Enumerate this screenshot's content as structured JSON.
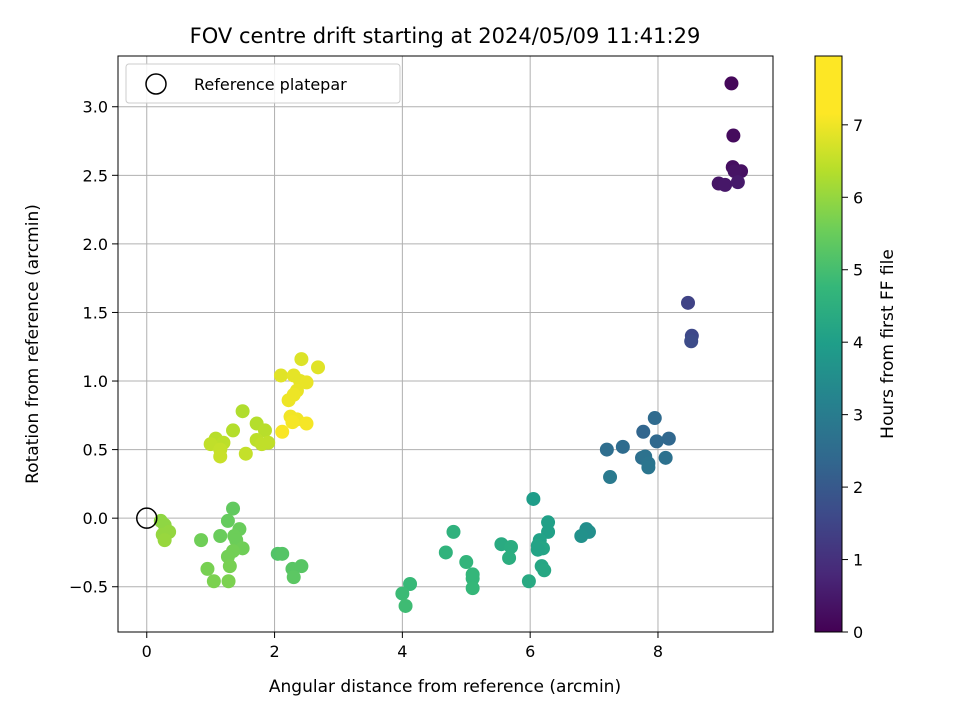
{
  "chart_data": {
    "type": "scatter",
    "title": "FOV centre drift starting at 2024/05/09 11:41:29",
    "xlabel": "Angular distance from reference (arcmin)",
    "ylabel": "Rotation from reference (arcmin)",
    "xlim": [
      -0.45,
      9.8
    ],
    "ylim": [
      -0.83,
      3.37
    ],
    "xticks": [
      0,
      2,
      4,
      6,
      8
    ],
    "yticks": [
      -0.5,
      0.0,
      0.5,
      1.0,
      1.5,
      2.0,
      2.5,
      3.0
    ],
    "xtick_labels": [
      "0",
      "2",
      "4",
      "6",
      "8"
    ],
    "ytick_labels": [
      "−0.5",
      "0.0",
      "0.5",
      "1.0",
      "1.5",
      "2.0",
      "2.5",
      "3.0"
    ],
    "grid": true,
    "legend": {
      "position": "top-left",
      "entries": [
        "Reference platepar"
      ]
    },
    "reference_point": {
      "x": 0.0,
      "y": 0.0,
      "marker": "open-circle",
      "color": "#000000"
    },
    "colorbar": {
      "label": "Hours from first FF file",
      "colormap": "viridis",
      "range": [
        0,
        7.95
      ],
      "ticks": [
        0,
        1,
        2,
        3,
        4,
        5,
        6,
        7
      ],
      "tick_labels": [
        "0",
        "1",
        "2",
        "3",
        "4",
        "5",
        "6",
        "7"
      ]
    },
    "points": [
      {
        "x": 9.15,
        "y": 3.17,
        "c": 0.15
      },
      {
        "x": 9.18,
        "y": 2.79,
        "c": 0.22
      },
      {
        "x": 9.17,
        "y": 2.56,
        "c": 0.3
      },
      {
        "x": 9.3,
        "y": 2.53,
        "c": 0.35
      },
      {
        "x": 9.2,
        "y": 2.53,
        "c": 0.4
      },
      {
        "x": 8.95,
        "y": 2.44,
        "c": 0.45
      },
      {
        "x": 9.05,
        "y": 2.43,
        "c": 0.5
      },
      {
        "x": 9.25,
        "y": 2.45,
        "c": 0.55
      },
      {
        "x": 8.47,
        "y": 1.57,
        "c": 1.6
      },
      {
        "x": 8.53,
        "y": 1.33,
        "c": 1.75
      },
      {
        "x": 8.52,
        "y": 1.29,
        "c": 1.85
      },
      {
        "x": 7.95,
        "y": 0.73,
        "c": 2.75
      },
      {
        "x": 7.77,
        "y": 0.63,
        "c": 2.6
      },
      {
        "x": 8.17,
        "y": 0.58,
        "c": 2.65
      },
      {
        "x": 7.98,
        "y": 0.56,
        "c": 2.7
      },
      {
        "x": 7.45,
        "y": 0.52,
        "c": 2.8
      },
      {
        "x": 7.2,
        "y": 0.5,
        "c": 2.85
      },
      {
        "x": 7.75,
        "y": 0.44,
        "c": 2.9
      },
      {
        "x": 8.12,
        "y": 0.44,
        "c": 2.95
      },
      {
        "x": 7.8,
        "y": 0.45,
        "c": 3.0
      },
      {
        "x": 7.85,
        "y": 0.4,
        "c": 3.05
      },
      {
        "x": 7.85,
        "y": 0.37,
        "c": 3.1
      },
      {
        "x": 7.25,
        "y": 0.3,
        "c": 3.25
      },
      {
        "x": 6.05,
        "y": 0.14,
        "c": 4.4
      },
      {
        "x": 6.28,
        "y": -0.03,
        "c": 4.5
      },
      {
        "x": 6.88,
        "y": -0.08,
        "c": 3.9
      },
      {
        "x": 6.92,
        "y": -0.1,
        "c": 3.95
      },
      {
        "x": 6.28,
        "y": -0.1,
        "c": 4.5
      },
      {
        "x": 6.8,
        "y": -0.13,
        "c": 4.0
      },
      {
        "x": 6.15,
        "y": -0.16,
        "c": 4.55
      },
      {
        "x": 6.12,
        "y": -0.2,
        "c": 4.6
      },
      {
        "x": 6.2,
        "y": -0.22,
        "c": 4.65
      },
      {
        "x": 6.12,
        "y": -0.23,
        "c": 4.6
      },
      {
        "x": 5.55,
        "y": -0.19,
        "c": 4.85
      },
      {
        "x": 5.7,
        "y": -0.21,
        "c": 4.9
      },
      {
        "x": 5.67,
        "y": -0.29,
        "c": 4.95
      },
      {
        "x": 6.18,
        "y": -0.35,
        "c": 4.7
      },
      {
        "x": 6.22,
        "y": -0.38,
        "c": 4.75
      },
      {
        "x": 5.98,
        "y": -0.46,
        "c": 4.8
      },
      {
        "x": 4.8,
        "y": -0.1,
        "c": 5.1
      },
      {
        "x": 4.68,
        "y": -0.25,
        "c": 5.15
      },
      {
        "x": 5.0,
        "y": -0.32,
        "c": 5.2
      },
      {
        "x": 5.1,
        "y": -0.41,
        "c": 5.25
      },
      {
        "x": 5.1,
        "y": -0.44,
        "c": 5.25
      },
      {
        "x": 5.1,
        "y": -0.51,
        "c": 5.3
      },
      {
        "x": 4.12,
        "y": -0.48,
        "c": 5.35
      },
      {
        "x": 4.0,
        "y": -0.55,
        "c": 5.4
      },
      {
        "x": 4.05,
        "y": -0.64,
        "c": 5.45
      },
      {
        "x": 1.35,
        "y": 0.07,
        "c": 6.0
      },
      {
        "x": 1.27,
        "y": -0.02,
        "c": 6.05
      },
      {
        "x": 1.45,
        "y": -0.08,
        "c": 6.1
      },
      {
        "x": 1.15,
        "y": -0.13,
        "c": 6.1
      },
      {
        "x": 1.37,
        "y": -0.13,
        "c": 6.15
      },
      {
        "x": 1.4,
        "y": -0.16,
        "c": 6.15
      },
      {
        "x": 0.85,
        "y": -0.16,
        "c": 6.2
      },
      {
        "x": 1.5,
        "y": -0.22,
        "c": 6.2
      },
      {
        "x": 1.35,
        "y": -0.24,
        "c": 6.25
      },
      {
        "x": 2.05,
        "y": -0.26,
        "c": 5.75
      },
      {
        "x": 2.12,
        "y": -0.26,
        "c": 5.8
      },
      {
        "x": 1.27,
        "y": -0.28,
        "c": 6.25
      },
      {
        "x": 1.3,
        "y": -0.35,
        "c": 6.3
      },
      {
        "x": 0.95,
        "y": -0.37,
        "c": 6.3
      },
      {
        "x": 2.28,
        "y": -0.37,
        "c": 5.85
      },
      {
        "x": 2.42,
        "y": -0.35,
        "c": 5.85
      },
      {
        "x": 2.3,
        "y": -0.43,
        "c": 5.9
      },
      {
        "x": 1.05,
        "y": -0.46,
        "c": 6.35
      },
      {
        "x": 1.28,
        "y": -0.46,
        "c": 6.35
      },
      {
        "x": 0.22,
        "y": -0.02,
        "c": 6.6
      },
      {
        "x": 0.28,
        "y": -0.05,
        "c": 6.6
      },
      {
        "x": 0.35,
        "y": -0.1,
        "c": 6.65
      },
      {
        "x": 0.25,
        "y": -0.12,
        "c": 6.65
      },
      {
        "x": 0.28,
        "y": -0.16,
        "c": 6.7
      },
      {
        "x": 1.5,
        "y": 0.78,
        "c": 7.0
      },
      {
        "x": 1.72,
        "y": 0.69,
        "c": 7.05
      },
      {
        "x": 1.35,
        "y": 0.64,
        "c": 7.05
      },
      {
        "x": 1.85,
        "y": 0.64,
        "c": 7.1
      },
      {
        "x": 1.08,
        "y": 0.58,
        "c": 7.1
      },
      {
        "x": 1.72,
        "y": 0.57,
        "c": 7.15
      },
      {
        "x": 1.2,
        "y": 0.55,
        "c": 7.15
      },
      {
        "x": 1.0,
        "y": 0.54,
        "c": 7.2
      },
      {
        "x": 1.8,
        "y": 0.54,
        "c": 7.2
      },
      {
        "x": 1.9,
        "y": 0.55,
        "c": 7.2
      },
      {
        "x": 1.15,
        "y": 0.5,
        "c": 7.25
      },
      {
        "x": 1.55,
        "y": 0.47,
        "c": 7.25
      },
      {
        "x": 1.15,
        "y": 0.45,
        "c": 7.3
      },
      {
        "x": 2.42,
        "y": 1.16,
        "c": 7.55
      },
      {
        "x": 2.68,
        "y": 1.1,
        "c": 7.6
      },
      {
        "x": 2.1,
        "y": 1.04,
        "c": 7.6
      },
      {
        "x": 2.3,
        "y": 1.04,
        "c": 7.65
      },
      {
        "x": 2.4,
        "y": 1.0,
        "c": 7.65
      },
      {
        "x": 2.5,
        "y": 0.99,
        "c": 7.7
      },
      {
        "x": 2.35,
        "y": 0.93,
        "c": 7.7
      },
      {
        "x": 2.3,
        "y": 0.9,
        "c": 7.75
      },
      {
        "x": 2.22,
        "y": 0.86,
        "c": 7.75
      },
      {
        "x": 2.25,
        "y": 0.74,
        "c": 7.8
      },
      {
        "x": 2.35,
        "y": 0.72,
        "c": 7.8
      },
      {
        "x": 2.28,
        "y": 0.7,
        "c": 7.85
      },
      {
        "x": 2.5,
        "y": 0.69,
        "c": 7.85
      },
      {
        "x": 2.12,
        "y": 0.63,
        "c": 7.9
      }
    ]
  }
}
